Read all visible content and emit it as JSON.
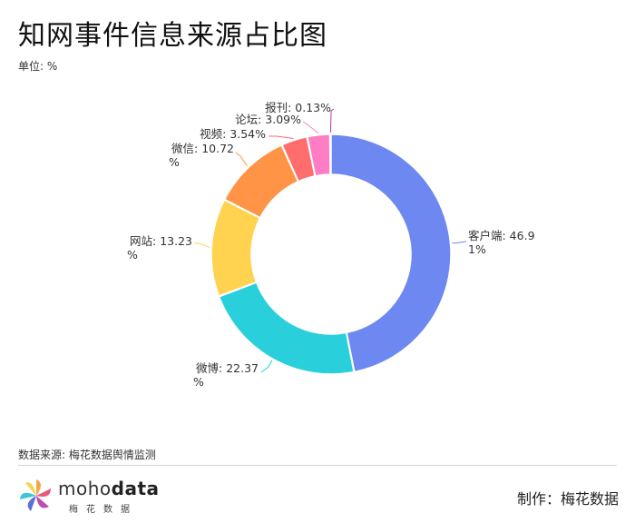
{
  "title": "知网事件信息来源占比图",
  "unit": "单位: %",
  "source": "数据来源: 梅花数据舆情监测",
  "logo": {
    "word_prefix": "moho",
    "word_suffix": "data",
    "sub": "梅花数据"
  },
  "credit": "制作：梅花数据",
  "chart_data": {
    "type": "pie",
    "variant": "donut",
    "categories": [
      "客户端",
      "微博",
      "网站",
      "微信",
      "视频",
      "论坛",
      "报刊"
    ],
    "values": [
      46.91,
      22.37,
      13.23,
      10.72,
      3.54,
      3.09,
      0.13
    ],
    "unit": "%",
    "colors": [
      "#6d88f0",
      "#29d0dc",
      "#ffd34f",
      "#ff9447",
      "#ff6d6d",
      "#ff7dc3",
      "#b23ba8"
    ],
    "labels": [
      [
        "客户端: 46.9",
        "1%"
      ],
      [
        "微博: 22.37",
        "%"
      ],
      [
        "网站: 13.23",
        "%"
      ],
      [
        "微信: 10.72",
        "%"
      ],
      [
        "视频: 3.54%"
      ],
      [
        "论坛: 3.09%"
      ],
      [
        "报刊: 0.13%"
      ]
    ]
  }
}
